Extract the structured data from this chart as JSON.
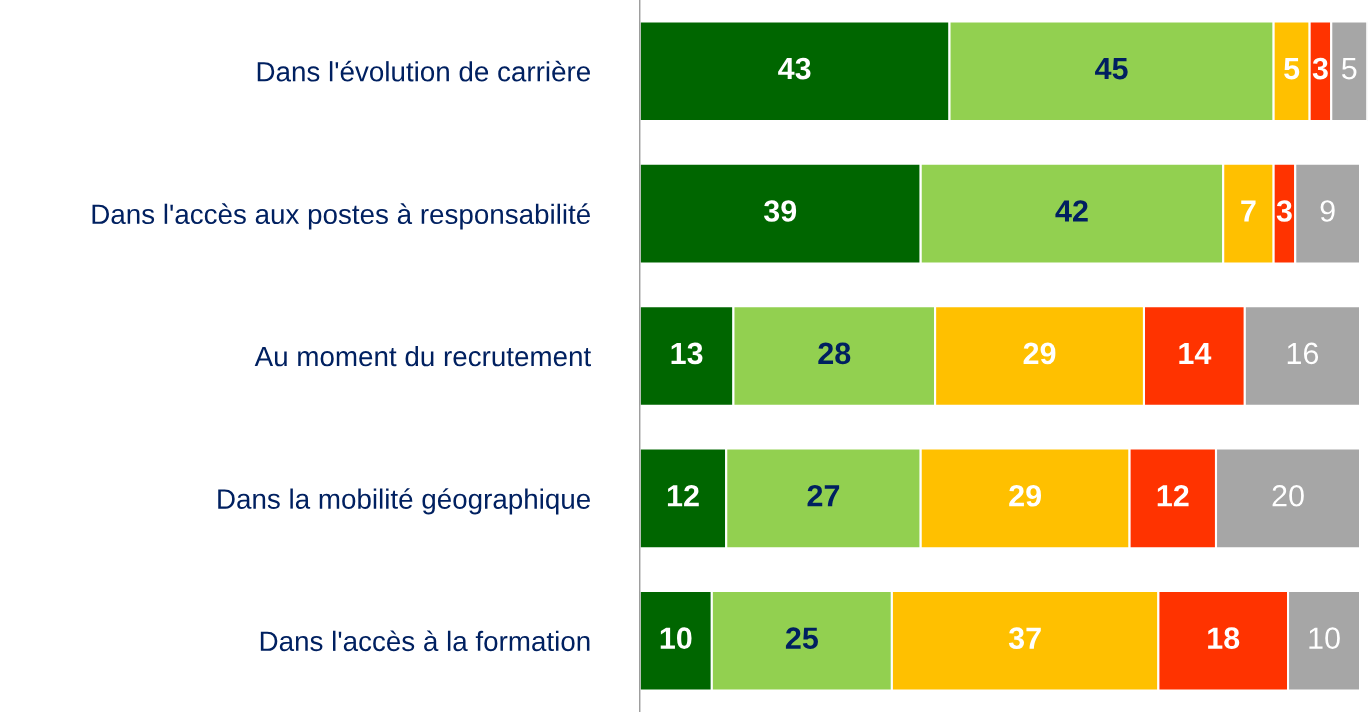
{
  "chart_data": {
    "type": "bar",
    "orientation": "horizontal",
    "stacked": true,
    "data_labels": true,
    "grid": false,
    "legend": false,
    "tick_labels": "y",
    "categories": [
      "Dans l'évolution de carrière",
      "Dans l'accès aux postes à responsabilité",
      "Au moment du recrutement",
      "Dans la mobilité géographique",
      "Dans l'accès à la formation"
    ],
    "series": [
      {
        "color": "#006600",
        "values": [
          43,
          39,
          13,
          12,
          10
        ]
      },
      {
        "color": "#92d050",
        "values": [
          45,
          42,
          28,
          27,
          25
        ]
      },
      {
        "color": "#ffc000",
        "values": [
          5,
          7,
          29,
          29,
          37
        ]
      },
      {
        "color": "#ff3300",
        "values": [
          3,
          3,
          14,
          12,
          18
        ]
      },
      {
        "color": "#a6a6a6",
        "values": [
          5,
          9,
          16,
          20,
          10
        ]
      }
    ]
  }
}
